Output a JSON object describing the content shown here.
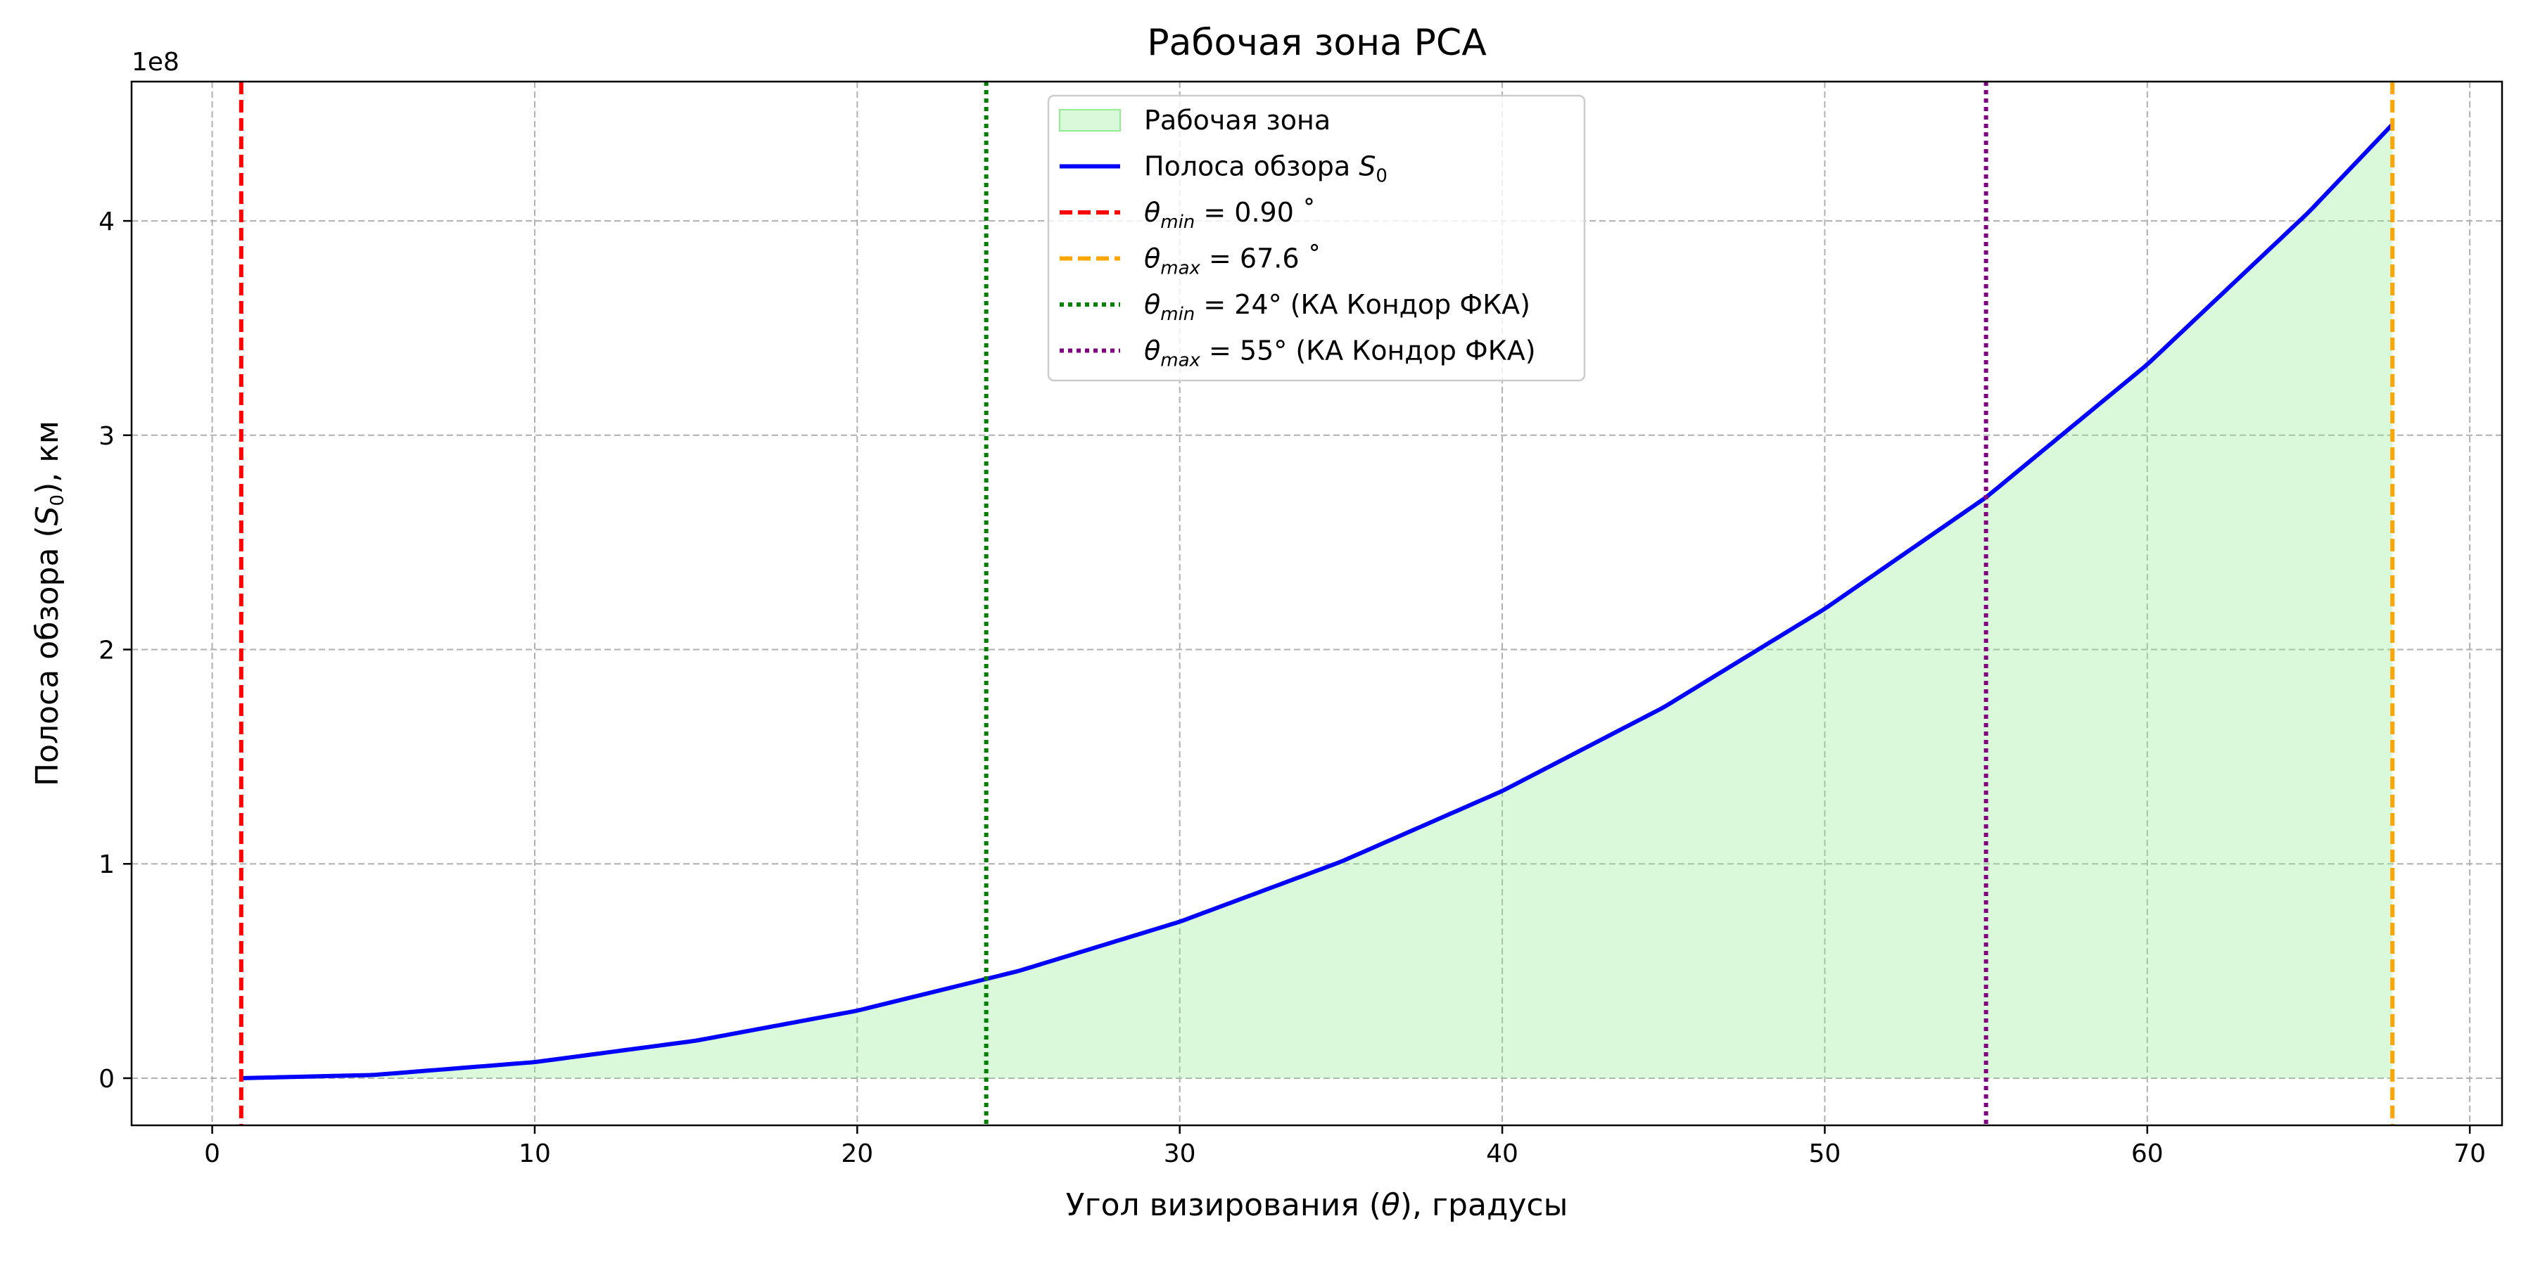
{
  "chart_data": {
    "type": "area",
    "title": "Рабочая зона РСА",
    "xlabel_parts": [
      "Угол визирования (",
      "θ",
      "), градусы"
    ],
    "ylabel_parts": [
      "Полоса обзора (",
      "S",
      "0",
      "), км"
    ],
    "offset_text": "1e8",
    "xlim": [
      -2.5,
      71
    ],
    "ylim": [
      -22000000,
      465000000
    ],
    "x_ticks": [
      0,
      10,
      20,
      30,
      40,
      50,
      60,
      70
    ],
    "x_tick_labels": [
      "0",
      "10",
      "20",
      "30",
      "40",
      "50",
      "60",
      "70"
    ],
    "y_ticks": [
      0,
      100000000,
      200000000,
      300000000,
      400000000
    ],
    "y_tick_labels": [
      "0",
      "1",
      "2",
      "3",
      "4"
    ],
    "grid": true,
    "legend_position": "upper-center",
    "series": [
      {
        "name": "Полоса обзора S0",
        "color": "#0000ff",
        "x": [
          0.9,
          5,
          10,
          15,
          20,
          25,
          30,
          35,
          40,
          45,
          50,
          55,
          60,
          65,
          67.6
        ],
        "y": [
          0,
          1500000,
          7500000,
          17500000,
          31500000,
          50000000,
          73000000,
          101000000,
          134000000,
          173000000,
          219000000,
          271000000,
          333000000,
          404000000,
          445000000
        ]
      }
    ],
    "fill": {
      "name": "Рабочая зона",
      "color": "#90ee90",
      "opacity": 0.33,
      "x_from": 0.9,
      "x_to": 67.6
    },
    "vlines": [
      {
        "x": 0.9,
        "color": "#ff0000",
        "style": "dashed"
      },
      {
        "x": 67.6,
        "color": "#ffa500",
        "style": "dashed"
      },
      {
        "x": 24,
        "color": "#008000",
        "style": "dotted"
      },
      {
        "x": 55,
        "color": "#800080",
        "style": "dotted"
      }
    ],
    "legend": [
      {
        "kind": "patch",
        "color": "#90ee90",
        "parts": [
          {
            "t": "Рабочая зона"
          }
        ]
      },
      {
        "kind": "solid",
        "color": "#0000ff",
        "parts": [
          {
            "t": "Полоса обзора "
          },
          {
            "t": "S",
            "i": true
          },
          {
            "t": "0",
            "sub": true
          }
        ]
      },
      {
        "kind": "dashed",
        "color": "#ff0000",
        "parts": [
          {
            "t": "θ",
            "i": true
          },
          {
            "t": "min",
            "i": true,
            "sub": true
          },
          {
            "t": " = 0.90 ˚"
          }
        ]
      },
      {
        "kind": "dashed",
        "color": "#ffa500",
        "parts": [
          {
            "t": "θ",
            "i": true
          },
          {
            "t": "max",
            "i": true,
            "sub": true
          },
          {
            "t": " = 67.6 ˚"
          }
        ]
      },
      {
        "kind": "dotted",
        "color": "#008000",
        "parts": [
          {
            "t": "θ",
            "i": true
          },
          {
            "t": "min",
            "i": true,
            "sub": true
          },
          {
            "t": " = 24° (КА Кондор ФКА)"
          }
        ]
      },
      {
        "kind": "dotted",
        "color": "#800080",
        "parts": [
          {
            "t": "θ",
            "i": true
          },
          {
            "t": "max",
            "i": true,
            "sub": true
          },
          {
            "t": " = 55° (КА Кондор ФКА)"
          }
        ]
      }
    ]
  }
}
